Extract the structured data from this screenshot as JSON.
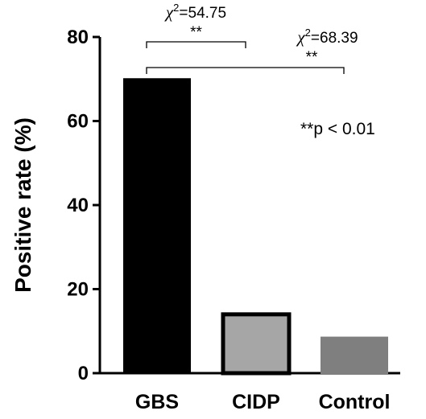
{
  "chart_data": {
    "type": "bar",
    "title": "",
    "xlabel": "",
    "ylabel": "Positive rate (%)",
    "ylim": [
      0,
      80
    ],
    "yticks": [
      "0",
      "20",
      "40",
      "60",
      "80"
    ],
    "categories": [
      "GBS",
      "CIDP",
      "Control"
    ],
    "values": [
      70,
      14,
      8.5
    ],
    "bar_colors": [
      "#000000",
      "#a6a6a6",
      "#7f7f7f"
    ],
    "bar_outlines": [
      "#000000",
      "#000000",
      "#7f7f7f"
    ],
    "grid": false,
    "legend": "none",
    "comparisons": [
      {
        "from": "GBS",
        "to": "CIDP",
        "stat_symbol": "χ",
        "stat_sup": "2",
        "stat_value": "=54.75",
        "significance": "**"
      },
      {
        "from": "GBS",
        "to": "Control",
        "stat_symbol": "χ",
        "stat_sup": "2",
        "stat_value": "=68.39",
        "significance": "**"
      }
    ],
    "annotation": "**p < 0.01"
  }
}
